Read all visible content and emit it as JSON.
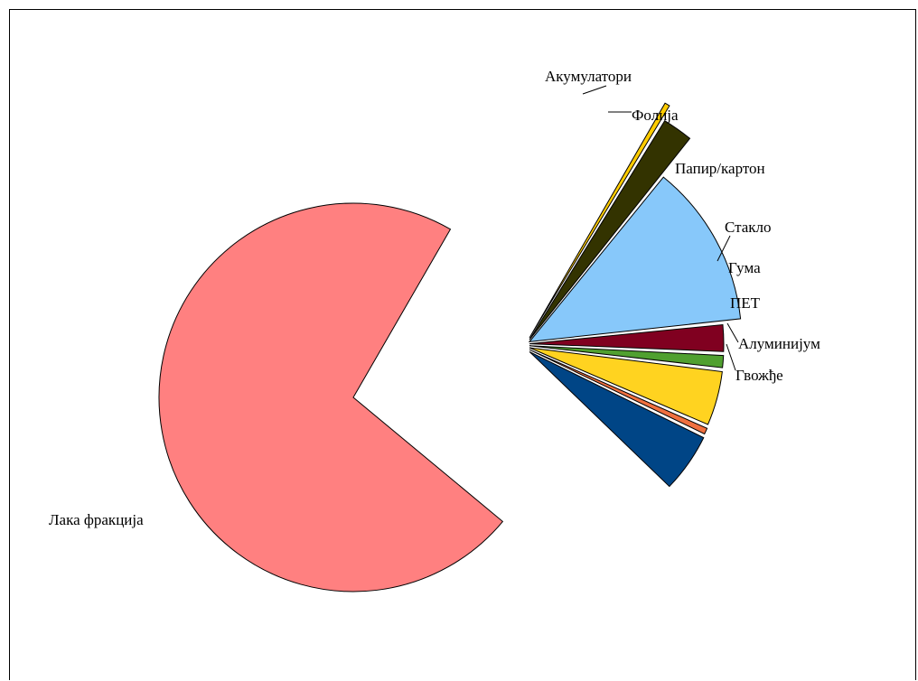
{
  "chart_data": {
    "type": "pie",
    "title": "",
    "legend": "none",
    "slices": [
      {
        "label": "Лака фракција",
        "value": 72.3,
        "color": "#FF8080",
        "exploded": false
      },
      {
        "label": "Акумулатори",
        "value": 0.3,
        "color": "#FFCC00",
        "exploded": true
      },
      {
        "label": "Фолија",
        "value": 1.9,
        "color": "#333300",
        "exploded": true
      },
      {
        "label": "Папир/картон",
        "value": 12.4,
        "color": "#87C8FA",
        "exploded": true
      },
      {
        "label": "Стакло",
        "value": 2.2,
        "color": "#800020",
        "exploded": true
      },
      {
        "label": "Гума",
        "value": 1.0,
        "color": "#50A030",
        "exploded": true
      },
      {
        "label": "ПЕТ",
        "value": 4.5,
        "color": "#FFD320",
        "exploded": true
      },
      {
        "label": "Алуминијум",
        "value": 0.5,
        "color": "#F07040",
        "exploded": true
      },
      {
        "label": "Гвожђе",
        "value": 4.9,
        "color": "#004586",
        "exploded": true
      }
    ]
  }
}
